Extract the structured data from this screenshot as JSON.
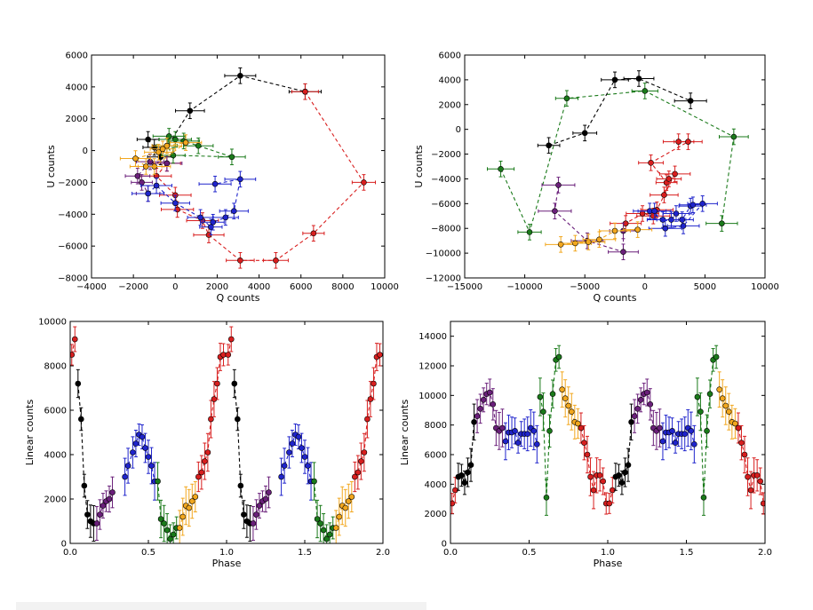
{
  "colors": {
    "black": "#000000",
    "blue": "#1f24cc",
    "green": "#1a7a1a",
    "orange": "#f2a71e",
    "red": "#d81e1e",
    "purple": "#6a1f7a"
  },
  "chart_data": [
    {
      "type": "scatter",
      "title": "",
      "xlabel": "Q counts",
      "ylabel": "U counts",
      "xlim": [
        -4000,
        10000
      ],
      "ylim": [
        -8000,
        6000
      ],
      "xticks": [
        -4000,
        -2000,
        0,
        2000,
        4000,
        6000,
        8000,
        10000
      ],
      "yticks": [
        -8000,
        -6000,
        -4000,
        -2000,
        0,
        2000,
        4000,
        6000
      ],
      "xticklabels": [
        "−4000",
        "−2000",
        "0",
        "2000",
        "4000",
        "6000",
        "8000",
        "10000"
      ],
      "yticklabels": [
        "−8000",
        "−6000",
        "−4000",
        "−2000",
        "0",
        "2000",
        "4000",
        "6000"
      ],
      "series": [
        {
          "name": "black",
          "color": "black",
          "points": [
            [
              -1300,
              700
            ],
            [
              -1000,
              200
            ],
            [
              -700,
              -400
            ],
            [
              700,
              2500
            ],
            [
              3100,
              4700
            ],
            [
              6200,
              3700
            ]
          ]
        },
        {
          "name": "red",
          "color": "red",
          "points": [
            [
              6200,
              3700
            ],
            [
              9000,
              -2000
            ],
            [
              6600,
              -5200
            ],
            [
              4800,
              -6900
            ],
            [
              3100,
              -6900
            ],
            [
              1600,
              -5300
            ],
            [
              1300,
              -4400
            ],
            [
              100,
              -3700
            ],
            [
              0,
              -2800
            ],
            [
              -900,
              -1600
            ],
            [
              -400,
              -800
            ]
          ]
        },
        {
          "name": "purple",
          "color": "purple",
          "points": [
            [
              -400,
              -800
            ],
            [
              -1200,
              -700
            ],
            [
              -1800,
              -1600
            ],
            [
              -1600,
              -2000
            ],
            [
              -1300,
              -2700
            ]
          ]
        },
        {
          "name": "blue",
          "color": "blue",
          "points": [
            [
              -1300,
              -2700
            ],
            [
              -900,
              -2200
            ],
            [
              0,
              -3300
            ],
            [
              1200,
              -4200
            ],
            [
              1700,
              -4800
            ],
            [
              1800,
              -4500
            ],
            [
              2400,
              -4200
            ],
            [
              2800,
              -3800
            ],
            [
              3100,
              -1800
            ],
            [
              1900,
              -2100
            ]
          ]
        },
        {
          "name": "green",
          "color": "green",
          "points": [
            [
              -300,
              900
            ],
            [
              0,
              700
            ],
            [
              400,
              600
            ],
            [
              1100,
              300
            ],
            [
              2700,
              -400
            ],
            [
              -100,
              -300
            ],
            [
              -400,
              300
            ]
          ]
        },
        {
          "name": "orange",
          "color": "orange",
          "points": [
            [
              -400,
              300
            ],
            [
              500,
              500
            ],
            [
              -1000,
              -1000
            ],
            [
              -1400,
              -1000
            ],
            [
              -1900,
              -500
            ],
            [
              -800,
              -100
            ],
            [
              -600,
              100
            ]
          ]
        }
      ]
    },
    {
      "type": "scatter",
      "title": "",
      "xlabel": "Q counts",
      "ylabel": "U counts",
      "xlim": [
        -15000,
        10000
      ],
      "ylim": [
        -12000,
        6000
      ],
      "xticks": [
        -15000,
        -10000,
        -5000,
        0,
        5000,
        10000
      ],
      "yticks": [
        -12000,
        -10000,
        -8000,
        -6000,
        -4000,
        -2000,
        0,
        2000,
        4000,
        6000
      ],
      "xticklabels": [
        "−15000",
        "−10000",
        "−5000",
        "0",
        "5000",
        "10000"
      ],
      "yticklabels": [
        "−12000",
        "−10000",
        "−8000",
        "−6000",
        "−4000",
        "−2000",
        "0",
        "2000",
        "4000",
        "6000"
      ],
      "series": [
        {
          "name": "black",
          "color": "black",
          "points": [
            [
              -8000,
              -1300
            ],
            [
              -5000,
              -300
            ],
            [
              -2500,
              4000
            ],
            [
              -500,
              4100
            ],
            [
              3800,
              2300
            ]
          ]
        },
        {
          "name": "green",
          "color": "green",
          "points": [
            [
              -12000,
              -3200
            ],
            [
              -9600,
              -8300
            ],
            [
              -6500,
              2500
            ],
            [
              0,
              3100
            ],
            [
              7400,
              -600
            ],
            [
              6400,
              -7600
            ]
          ]
        },
        {
          "name": "red",
          "color": "red",
          "points": [
            [
              2800,
              -1000
            ],
            [
              3600,
              -1000
            ],
            [
              500,
              -2700
            ],
            [
              1800,
              -4300
            ],
            [
              2000,
              -4000
            ],
            [
              1600,
              -5300
            ],
            [
              2500,
              -3600
            ],
            [
              1000,
              -6500
            ],
            [
              700,
              -7000
            ],
            [
              -200,
              -6800
            ],
            [
              -1600,
              -7600
            ]
          ]
        },
        {
          "name": "blue",
          "color": "blue",
          "points": [
            [
              400,
              -6600
            ],
            [
              1500,
              -7300
            ],
            [
              2200,
              -7300
            ],
            [
              2600,
              -6800
            ],
            [
              3100,
              -7300
            ],
            [
              3800,
              -6200
            ],
            [
              4000,
              -6100
            ],
            [
              4800,
              -6000
            ],
            [
              3200,
              -7800
            ],
            [
              1700,
              -8000
            ],
            [
              800,
              -6600
            ]
          ]
        },
        {
          "name": "purple",
          "color": "purple",
          "points": [
            [
              -7200,
              -4500
            ],
            [
              -7500,
              -6600
            ],
            [
              -4800,
              -9000
            ],
            [
              -1800,
              -9900
            ],
            [
              -1800,
              -8200
            ]
          ]
        },
        {
          "name": "orange",
          "color": "orange",
          "points": [
            [
              -7000,
              -9300
            ],
            [
              -5800,
              -9200
            ],
            [
              -4700,
              -9100
            ],
            [
              -3800,
              -8900
            ],
            [
              -2500,
              -8200
            ],
            [
              -600,
              -8100
            ]
          ]
        }
      ]
    },
    {
      "type": "line",
      "title": "",
      "xlabel": "Phase",
      "ylabel": "Linear counts",
      "xlim": [
        0.0,
        2.0
      ],
      "ylim": [
        0,
        10000
      ],
      "xticks": [
        0.0,
        0.5,
        1.0,
        1.5,
        2.0
      ],
      "yticks": [
        0,
        2000,
        4000,
        6000,
        8000,
        10000
      ],
      "xticklabels": [
        "0.0",
        "0.5",
        "1.0",
        "1.5",
        "2.0"
      ],
      "yticklabels": [
        "0",
        "2000",
        "4000",
        "6000",
        "8000",
        "10000"
      ],
      "repeat_period": 1.0,
      "series": [
        {
          "name": "red-start",
          "color": "red",
          "points": [
            [
              0.01,
              8500
            ],
            [
              0.03,
              9200
            ]
          ]
        },
        {
          "name": "black",
          "color": "black",
          "points": [
            [
              0.05,
              7200
            ],
            [
              0.07,
              5600
            ],
            [
              0.09,
              2600
            ],
            [
              0.11,
              1300
            ],
            [
              0.13,
              1000
            ],
            [
              0.15,
              900
            ]
          ]
        },
        {
          "name": "purple",
          "color": "purple",
          "points": [
            [
              0.17,
              900
            ],
            [
              0.19,
              1300
            ],
            [
              0.21,
              1700
            ],
            [
              0.23,
              1900
            ],
            [
              0.25,
              2000
            ],
            [
              0.27,
              2300
            ]
          ]
        },
        {
          "name": "blue",
          "color": "blue",
          "points": [
            [
              0.35,
              3000
            ],
            [
              0.37,
              3500
            ],
            [
              0.4,
              4100
            ],
            [
              0.42,
              4500
            ],
            [
              0.44,
              4900
            ],
            [
              0.46,
              4800
            ],
            [
              0.48,
              4300
            ],
            [
              0.5,
              3900
            ],
            [
              0.52,
              3500
            ],
            [
              0.54,
              2800
            ]
          ]
        },
        {
          "name": "green",
          "color": "green",
          "points": [
            [
              0.56,
              2800
            ],
            [
              0.58,
              1100
            ],
            [
              0.6,
              900
            ],
            [
              0.62,
              600
            ],
            [
              0.64,
              200
            ],
            [
              0.66,
              400
            ],
            [
              0.68,
              700
            ]
          ]
        },
        {
          "name": "orange",
          "color": "orange",
          "points": [
            [
              0.7,
              700
            ],
            [
              0.72,
              1200
            ],
            [
              0.74,
              1700
            ],
            [
              0.76,
              1600
            ],
            [
              0.78,
              1900
            ],
            [
              0.8,
              2100
            ]
          ]
        },
        {
          "name": "red",
          "color": "red",
          "points": [
            [
              0.82,
              3000
            ],
            [
              0.84,
              3200
            ],
            [
              0.86,
              3700
            ],
            [
              0.88,
              4100
            ],
            [
              0.9,
              5600
            ],
            [
              0.92,
              6500
            ],
            [
              0.94,
              7200
            ],
            [
              0.96,
              8400
            ],
            [
              0.98,
              8500
            ]
          ]
        }
      ]
    },
    {
      "type": "line",
      "title": "",
      "xlabel": "Phase",
      "ylabel": "Linear counts",
      "xlim": [
        0.0,
        2.0
      ],
      "ylim": [
        0,
        15000
      ],
      "xticks": [
        0.0,
        0.5,
        1.0,
        1.5,
        2.0
      ],
      "yticks": [
        0,
        2000,
        4000,
        6000,
        8000,
        10000,
        12000,
        14000
      ],
      "xticklabels": [
        "0.0",
        "0.5",
        "1.0",
        "1.5",
        "2.0"
      ],
      "yticklabels": [
        "0",
        "2000",
        "4000",
        "6000",
        "8000",
        "10000",
        "12000",
        "14000"
      ],
      "repeat_period": 1.0,
      "series": [
        {
          "name": "red-start",
          "color": "red",
          "points": [
            [
              0.01,
              2700
            ],
            [
              0.03,
              3600
            ]
          ]
        },
        {
          "name": "black",
          "color": "black",
          "points": [
            [
              0.05,
              4500
            ],
            [
              0.07,
              4600
            ],
            [
              0.09,
              4100
            ],
            [
              0.11,
              4800
            ],
            [
              0.13,
              5300
            ],
            [
              0.15,
              8200
            ]
          ]
        },
        {
          "name": "purple",
          "color": "purple",
          "points": [
            [
              0.17,
              8600
            ],
            [
              0.19,
              9100
            ],
            [
              0.21,
              9700
            ],
            [
              0.23,
              10100
            ],
            [
              0.25,
              10200
            ],
            [
              0.27,
              9400
            ],
            [
              0.29,
              7800
            ],
            [
              0.31,
              7600
            ],
            [
              0.33,
              7800
            ]
          ]
        },
        {
          "name": "blue",
          "color": "blue",
          "points": [
            [
              0.35,
              6900
            ],
            [
              0.37,
              7500
            ],
            [
              0.39,
              7500
            ],
            [
              0.41,
              7600
            ],
            [
              0.43,
              6800
            ],
            [
              0.45,
              7400
            ],
            [
              0.47,
              7400
            ],
            [
              0.49,
              7400
            ],
            [
              0.51,
              7800
            ],
            [
              0.53,
              7600
            ],
            [
              0.55,
              6700
            ]
          ]
        },
        {
          "name": "green",
          "color": "green",
          "points": [
            [
              0.57,
              9900
            ],
            [
              0.59,
              8900
            ],
            [
              0.61,
              3100
            ],
            [
              0.63,
              7600
            ],
            [
              0.65,
              10100
            ],
            [
              0.67,
              12400
            ],
            [
              0.69,
              12600
            ]
          ]
        },
        {
          "name": "orange",
          "color": "orange",
          "points": [
            [
              0.71,
              10400
            ],
            [
              0.73,
              9800
            ],
            [
              0.75,
              9300
            ],
            [
              0.77,
              8900
            ],
            [
              0.79,
              8200
            ],
            [
              0.81,
              8100
            ]
          ]
        },
        {
          "name": "red",
          "color": "red",
          "points": [
            [
              0.83,
              7800
            ],
            [
              0.85,
              6800
            ],
            [
              0.87,
              6000
            ],
            [
              0.89,
              4500
            ],
            [
              0.91,
              3600
            ],
            [
              0.93,
              4600
            ],
            [
              0.95,
              4600
            ],
            [
              0.97,
              4200
            ],
            [
              0.99,
              2700
            ]
          ]
        }
      ]
    }
  ]
}
